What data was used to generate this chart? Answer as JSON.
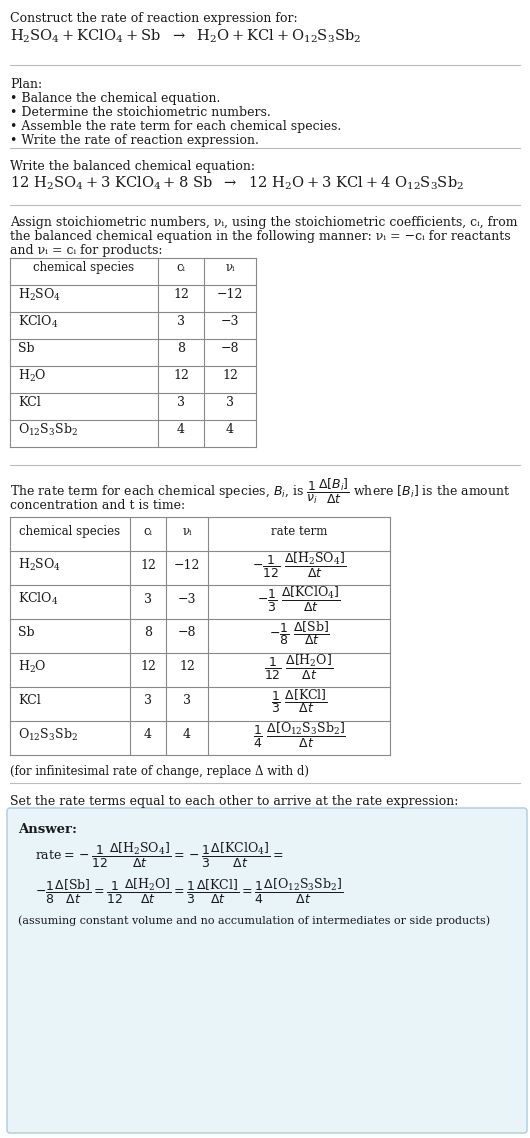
{
  "title_line1": "Construct the rate of reaction expression for:",
  "plan_header": "Plan:",
  "plan_items": [
    "• Balance the chemical equation.",
    "• Determine the stoichiometric numbers.",
    "• Assemble the rate term for each chemical species.",
    "• Write the rate of reaction expression."
  ],
  "balanced_header": "Write the balanced chemical equation:",
  "assign_text1": "Assign stoichiometric numbers, νᵢ, using the stoichiometric coefficients, cᵢ, from",
  "assign_text2": "the balanced chemical equation in the following manner: νᵢ = −cᵢ for reactants",
  "assign_text3": "and νᵢ = cᵢ for products:",
  "table1_headers": [
    "chemical species",
    "cᵢ",
    "νᵢ"
  ],
  "table2_headers": [
    "chemical species",
    "cᵢ",
    "νᵢ",
    "rate term"
  ],
  "infinitesimal_note": "(for infinitesimal rate of change, replace Δ with d)",
  "set_rate_text": "Set the rate terms equal to each other to arrive at the rate expression:",
  "answer_label": "Answer:",
  "assuming_note": "(assuming constant volume and no accumulation of intermediates or side products)",
  "bg_color": "#ffffff",
  "table_border_color": "#888888",
  "answer_box_color": "#e8f4f8",
  "answer_box_border": "#aaccdd",
  "text_color": "#1a1a1a",
  "font_size": 9.0,
  "line_color": "#bbbbbb"
}
